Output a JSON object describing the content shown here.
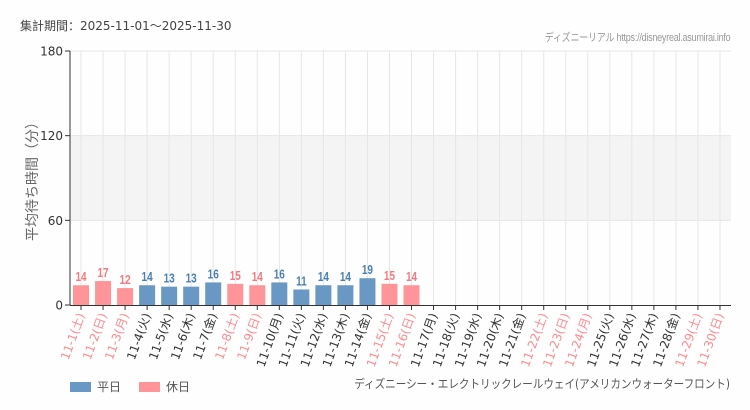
{
  "header": {
    "period_label": "集計期間：2025-11-01〜2025-11-30",
    "credit": "ディズニーリアル https://disneyreal.asumirai.info"
  },
  "footer": {
    "attraction": "ディズニーシー・エレクトリックレールウェイ(アメリカンウォーターフロント)"
  },
  "colors": {
    "weekday": "#6a98c5",
    "holiday": "#ff9599",
    "weekday_label": "#4a7fb5",
    "holiday_label": "#f27a80",
    "weekday_tick": "#333333",
    "holiday_tick": "#ff8a90",
    "band": "#f4f4f4",
    "grid": "#e6e6e6"
  },
  "chart_data": {
    "type": "bar",
    "title": "",
    "xlabel": "",
    "ylabel": "平均待ち時間（分）",
    "ylim": [
      0,
      180
    ],
    "yticks": [
      0,
      60,
      120,
      180
    ],
    "band": [
      60,
      120
    ],
    "grid": true,
    "legend_position": "bottom-left",
    "legend": [
      {
        "name": "平日",
        "color": "#6a98c5"
      },
      {
        "name": "休日",
        "color": "#ff9599"
      }
    ],
    "categories": [
      "11-1(土)",
      "11-2(日)",
      "11-3(月)",
      "11-4(火)",
      "11-5(水)",
      "11-6(木)",
      "11-7(金)",
      "11-8(土)",
      "11-9(日)",
      "11-10(月)",
      "11-11(火)",
      "11-12(水)",
      "11-13(木)",
      "11-14(金)",
      "11-15(土)",
      "11-16(日)",
      "11-17(月)",
      "11-18(火)",
      "11-19(水)",
      "11-20(木)",
      "11-21(金)",
      "11-22(土)",
      "11-23(日)",
      "11-24(月)",
      "11-25(火)",
      "11-26(水)",
      "11-27(木)",
      "11-28(金)",
      "11-29(土)",
      "11-30(日)"
    ],
    "day_type": [
      "holiday",
      "holiday",
      "holiday",
      "weekday",
      "weekday",
      "weekday",
      "weekday",
      "holiday",
      "holiday",
      "weekday",
      "weekday",
      "weekday",
      "weekday",
      "weekday",
      "holiday",
      "holiday",
      "weekday",
      "weekday",
      "weekday",
      "weekday",
      "weekday",
      "holiday",
      "holiday",
      "holiday",
      "weekday",
      "weekday",
      "weekday",
      "weekday",
      "holiday",
      "holiday"
    ],
    "values": [
      14,
      17,
      12,
      14,
      13,
      13,
      16,
      15,
      14,
      16,
      11,
      14,
      14,
      19,
      15,
      14,
      null,
      null,
      null,
      null,
      null,
      null,
      null,
      null,
      null,
      null,
      null,
      null,
      null,
      null
    ]
  }
}
